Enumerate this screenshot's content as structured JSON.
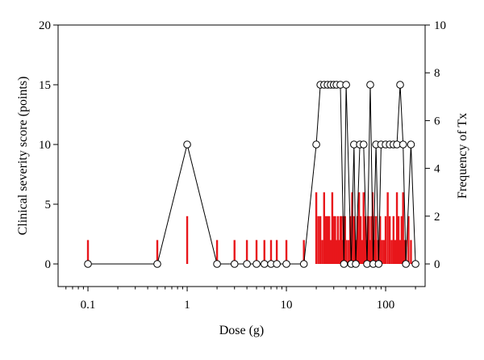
{
  "chart_data": {
    "type": "line",
    "xlabel": "Dose (g)",
    "ylabel_left": "Clinical severity score (points)",
    "ylabel_right": "Frequency of Tx",
    "x_scale": "log",
    "xlim": [
      0.05,
      250
    ],
    "ylim_left": [
      0,
      20
    ],
    "ylim_right": [
      0,
      10
    ],
    "x_ticks": [
      0.1,
      1,
      10,
      100
    ],
    "x_tick_labels": [
      "0.1",
      "1",
      "10",
      "100"
    ],
    "y_left_ticks": [
      0,
      5,
      10,
      15,
      20
    ],
    "y_left_tick_labels": [
      "0",
      "5",
      "10",
      "15",
      "20"
    ],
    "y_right_ticks": [
      0,
      2,
      4,
      6,
      8,
      10
    ],
    "y_right_tick_labels": [
      "0",
      "2",
      "4",
      "6",
      "8",
      "10"
    ],
    "grid": false,
    "colors": {
      "line": "#000000",
      "marker_fill": "#ffffff",
      "frequency_bars": "#e8161b"
    },
    "series": [
      {
        "kind": "line-markers",
        "axis": "left",
        "x": [
          0.1,
          0.5,
          1,
          2,
          3,
          4,
          5,
          6,
          7,
          8,
          10,
          15,
          20,
          22,
          24,
          26,
          28,
          30,
          32,
          35,
          38,
          40,
          45,
          48,
          50,
          55,
          60,
          65,
          70,
          75,
          80,
          85,
          90,
          100,
          110,
          120,
          130,
          140,
          150,
          160,
          180,
          200
        ],
        "y": [
          0,
          0,
          10,
          0,
          0,
          0,
          0,
          0,
          0,
          0,
          0,
          0,
          10,
          15,
          15,
          15,
          15,
          15,
          15,
          15,
          0,
          15,
          0,
          10,
          0,
          10,
          10,
          0,
          15,
          0,
          10,
          0,
          10,
          10,
          10,
          10,
          10,
          15,
          10,
          0,
          10,
          0
        ]
      },
      {
        "kind": "bars",
        "axis": "right",
        "x": [
          0.1,
          0.5,
          1,
          2,
          3,
          4,
          5,
          6,
          7,
          8,
          10,
          15,
          20,
          21,
          22,
          23,
          24,
          25,
          26,
          27,
          28,
          29,
          30,
          31,
          32,
          33,
          34,
          35,
          36,
          37,
          38,
          39,
          40,
          42,
          44,
          46,
          48,
          50,
          52,
          54,
          56,
          58,
          60,
          62,
          64,
          66,
          68,
          70,
          72,
          74,
          76,
          78,
          80,
          84,
          88,
          92,
          96,
          100,
          105,
          110,
          115,
          120,
          125,
          130,
          135,
          140,
          145,
          150,
          155,
          160,
          170,
          180
        ],
        "values": [
          1,
          1,
          2,
          1,
          1,
          1,
          1,
          1,
          1,
          1,
          1,
          1,
          3,
          2,
          2,
          1,
          3,
          2,
          2,
          2,
          1,
          3,
          2,
          2,
          1,
          2,
          1,
          2,
          2,
          1,
          2,
          2,
          1,
          1,
          2,
          3,
          2,
          1,
          2,
          3,
          2,
          1,
          3,
          2,
          1,
          2,
          2,
          1,
          2,
          3,
          2,
          1,
          2,
          1,
          2,
          1,
          1,
          2,
          3,
          2,
          1,
          2,
          1,
          3,
          2,
          1,
          2,
          3,
          1,
          1,
          2,
          1
        ]
      }
    ]
  }
}
